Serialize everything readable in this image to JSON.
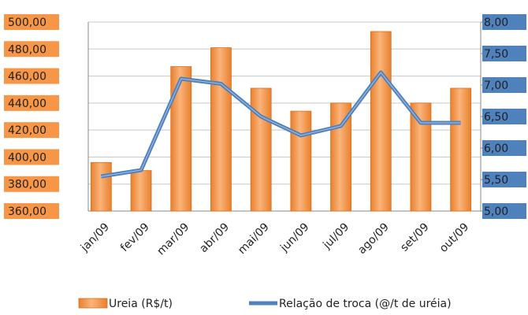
{
  "chart_data": {
    "type": "bar",
    "categories": [
      "jan/09",
      "fev/09",
      "mar/09",
      "abr/09",
      "mai/09",
      "jun/09",
      "jul/09",
      "ago/09",
      "set/09",
      "out/09"
    ],
    "series": [
      {
        "name": "Ureia (R$/t)",
        "color": "#f79646",
        "type": "bar",
        "values": [
          396,
          390,
          467,
          481,
          451,
          434,
          440,
          493,
          440,
          451
        ]
      },
      {
        "name": "Relação de troca (@/t de uréia)",
        "color": "#4f81bd",
        "type": "line",
        "axis": "y2",
        "values": [
          5.55,
          5.65,
          7.1,
          7.02,
          6.5,
          6.2,
          6.35,
          7.2,
          6.4,
          6.4
        ]
      }
    ],
    "ylim": [
      360,
      500
    ],
    "yticks": [
      {
        "value": 360,
        "label": "360,00"
      },
      {
        "value": 380,
        "label": "380,00"
      },
      {
        "value": 400,
        "label": "400,00"
      },
      {
        "value": 420,
        "label": "420,00"
      },
      {
        "value": 440,
        "label": "440,00"
      },
      {
        "value": 460,
        "label": "460,00"
      },
      {
        "value": 480,
        "label": "480,00"
      },
      {
        "value": 500,
        "label": "500,00"
      }
    ],
    "y2lim": [
      5,
      8
    ],
    "y2ticks": [
      {
        "value": 5,
        "label": "5,00"
      },
      {
        "value": 5.5,
        "label": "5,50"
      },
      {
        "value": 6,
        "label": "6,00"
      },
      {
        "value": 6.5,
        "label": "6,50"
      },
      {
        "value": 7,
        "label": "7,00"
      },
      {
        "value": 7.5,
        "label": "7,50"
      },
      {
        "value": 8,
        "label": "8,00"
      }
    ],
    "grid": true
  }
}
